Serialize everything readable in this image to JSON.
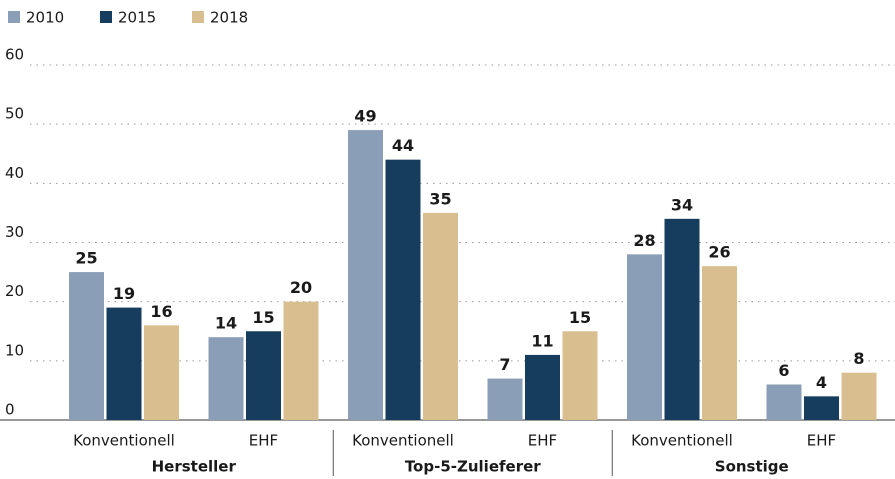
{
  "chart_data": {
    "type": "bar",
    "categories": [
      "Konventionell",
      "EHF",
      "Konventionell",
      "EHF",
      "Konventionell",
      "EHF"
    ],
    "groups": [
      "Hersteller",
      "Top-5-Zulieferer",
      "Sonstige"
    ],
    "series": [
      {
        "name": "2010",
        "color": "#8a9fb7",
        "values": [
          25,
          14,
          49,
          7,
          28,
          6
        ]
      },
      {
        "name": "2015",
        "color": "#173d5e",
        "values": [
          19,
          15,
          44,
          11,
          34,
          4
        ]
      },
      {
        "name": "2018",
        "color": "#d9bf8f",
        "values": [
          16,
          20,
          35,
          15,
          26,
          8
        ]
      }
    ],
    "ylim": [
      0,
      60
    ],
    "yticks": [
      0,
      10,
      20,
      30,
      40,
      50,
      60
    ],
    "grid": true,
    "legend": "top-left"
  }
}
